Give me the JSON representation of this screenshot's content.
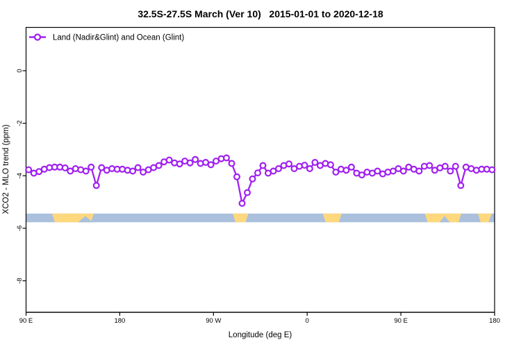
{
  "chart_data": {
    "type": "line",
    "title": "32.5S-27.5S March (Ver 10)   2015-01-01 to 2020-12-18",
    "xlabel": "Longitude (deg E)",
    "ylabel": "XCO2 - MLO trend (ppm)",
    "legend_label": "Land (Nadir&Glint) and Ocean (Glint)",
    "legend_position": "top-left",
    "grid": false,
    "xlim": [
      90,
      540
    ],
    "ylim": [
      -9.2,
      1.65
    ],
    "x_ticks": [
      {
        "value": 90,
        "label": "90 E"
      },
      {
        "value": 180,
        "label": "180"
      },
      {
        "value": 270,
        "label": "90 W"
      },
      {
        "value": 360,
        "label": "0"
      },
      {
        "value": 450,
        "label": "90 E"
      },
      {
        "value": 540,
        "label": "180"
      }
    ],
    "y_ticks": [
      {
        "value": 0,
        "label": "0"
      },
      {
        "value": -2,
        "label": "-2"
      },
      {
        "value": -4,
        "label": "-4"
      },
      {
        "value": -6,
        "label": "-6"
      },
      {
        "value": -8,
        "label": "-8"
      }
    ],
    "series": [
      {
        "name": "Land (Nadir&Glint) and Ocean (Glint)",
        "color": "#a020f0",
        "marker": "open-circle",
        "x": [
          92.5,
          97.5,
          102.5,
          107.5,
          112.5,
          117.5,
          122.5,
          127.5,
          132.5,
          137.5,
          142.5,
          147.5,
          152.5,
          157.5,
          162.5,
          167.5,
          172.5,
          177.5,
          182.5,
          187.5,
          192.5,
          197.5,
          202.5,
          207.5,
          212.5,
          217.5,
          222.5,
          227.5,
          232.5,
          237.5,
          242.5,
          247.5,
          252.5,
          257.5,
          262.5,
          267.5,
          272.5,
          277.5,
          282.5,
          287.5,
          292.5,
          297.5,
          302.5,
          307.5,
          312.5,
          317.5,
          322.5,
          327.5,
          332.5,
          337.5,
          342.5,
          347.5,
          352.5,
          357.5,
          362.5,
          367.5,
          372.5,
          377.5,
          382.5,
          387.5,
          392.5,
          397.5,
          402.5,
          407.5,
          412.5,
          417.5,
          422.5,
          427.5,
          432.5,
          437.5,
          442.5,
          447.5,
          452.5,
          457.5,
          462.5,
          467.5,
          472.5,
          477.5,
          482.5,
          487.5,
          492.5,
          497.5,
          502.5,
          507.5,
          512.5,
          517.5,
          522.5,
          527.5,
          532.5,
          537.5
        ],
        "y": [
          -3.77,
          -3.9,
          -3.84,
          -3.75,
          -3.69,
          -3.67,
          -3.67,
          -3.7,
          -3.82,
          -3.73,
          -3.77,
          -3.82,
          -3.67,
          -4.37,
          -3.69,
          -3.79,
          -3.73,
          -3.75,
          -3.75,
          -3.79,
          -3.82,
          -3.69,
          -3.86,
          -3.77,
          -3.69,
          -3.61,
          -3.47,
          -3.4,
          -3.51,
          -3.55,
          -3.44,
          -3.51,
          -3.38,
          -3.53,
          -3.49,
          -3.58,
          -3.44,
          -3.35,
          -3.32,
          -3.53,
          -4.04,
          -5.05,
          -4.64,
          -4.12,
          -3.89,
          -3.61,
          -3.9,
          -3.82,
          -3.73,
          -3.61,
          -3.55,
          -3.73,
          -3.64,
          -3.6,
          -3.73,
          -3.49,
          -3.61,
          -3.53,
          -3.58,
          -3.86,
          -3.75,
          -3.79,
          -3.67,
          -3.9,
          -3.97,
          -3.86,
          -3.9,
          -3.82,
          -3.93,
          -3.86,
          -3.82,
          -3.73,
          -3.82,
          -3.67,
          -3.75,
          -3.82,
          -3.64,
          -3.61,
          -3.79,
          -3.7,
          -3.64,
          -3.82,
          -3.64,
          -4.37,
          -3.67,
          -3.73,
          -3.79,
          -3.75,
          -3.75,
          -3.77
        ]
      }
    ],
    "surface_band": {
      "description": "land-ocean indicator strip",
      "top": -5.44,
      "bottom": -5.77,
      "ocean_color": "#aac0dd",
      "land_color": "#fdd87d",
      "land_segments": [
        [
          115,
          155
        ],
        [
          288.5,
          303.5
        ],
        [
          375,
          393
        ],
        [
          473,
          508
        ],
        [
          524,
          537
        ]
      ],
      "ocean_notches": [
        [
          140,
          154
        ],
        [
          487,
          497
        ]
      ]
    }
  }
}
